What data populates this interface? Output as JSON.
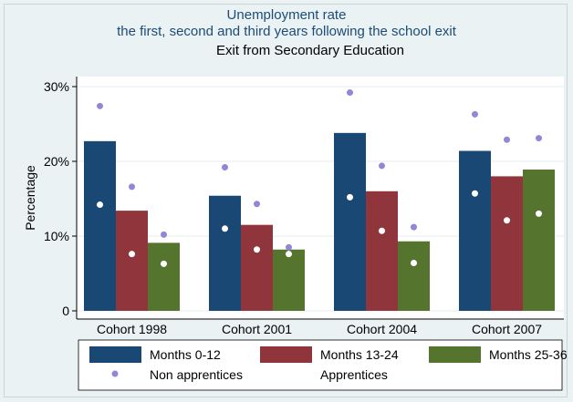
{
  "chart_data": {
    "type": "bar",
    "title": "Unemployment rate",
    "title_line2": "the first, second and third years following the school exit",
    "subtitle": "Exit from Secondary Education",
    "xlabel": "",
    "ylabel": "Percentage",
    "ylim": [
      0,
      30
    ],
    "yticks": [
      0,
      10,
      20,
      30
    ],
    "ytick_labels": [
      "0",
      "10%",
      "20%",
      "30%"
    ],
    "grid": true,
    "legend_position": "bottom",
    "categories": [
      "Cohort 1998",
      "Cohort 2001",
      "Cohort 2004",
      "Cohort 2007"
    ],
    "series": [
      {
        "name": "Months 0-12",
        "color": "#1a4874",
        "values": [
          22.7,
          15.4,
          23.8,
          21.4
        ]
      },
      {
        "name": "Months 13-24",
        "color": "#90353c",
        "values": [
          13.4,
          11.5,
          16.0,
          18.0
        ]
      },
      {
        "name": "Months 25-36",
        "color": "#55752f",
        "values": [
          9.1,
          8.2,
          9.3,
          18.9
        ]
      }
    ],
    "markers": [
      {
        "name": "Non apprentices",
        "color": "#9187d6",
        "values": [
          [
            27.4,
            16.6,
            10.2
          ],
          [
            19.2,
            14.3,
            8.5
          ],
          [
            29.2,
            19.4,
            11.2
          ],
          [
            26.3,
            22.9,
            23.1
          ]
        ]
      },
      {
        "name": "Apprentices",
        "color": "#ffffff",
        "values": [
          [
            14.2,
            7.6,
            6.3
          ],
          [
            11.0,
            8.2,
            7.6
          ],
          [
            15.2,
            10.7,
            6.4
          ],
          [
            15.7,
            12.1,
            13.0
          ]
        ]
      }
    ]
  }
}
